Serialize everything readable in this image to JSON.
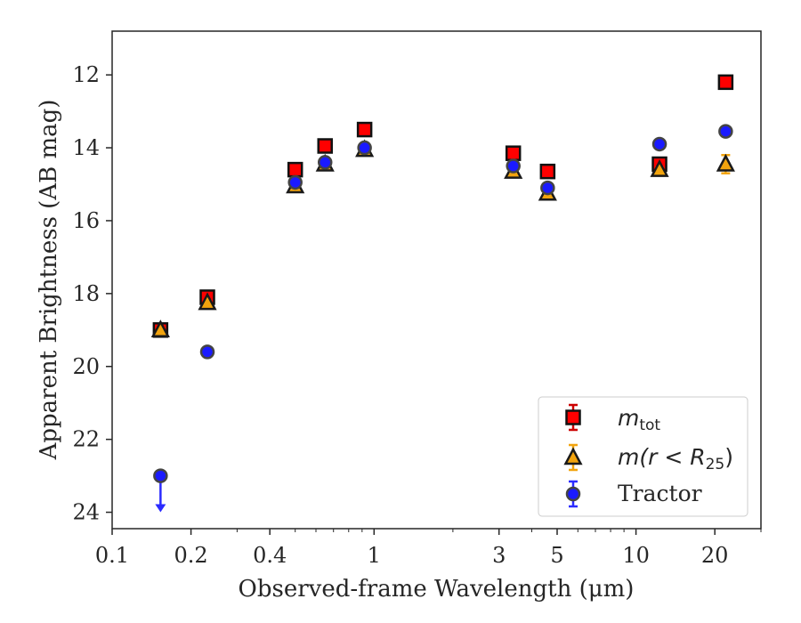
{
  "chart_data": {
    "type": "scatter",
    "xlabel": "Observed-frame Wavelength (μm)",
    "ylabel": "Apparent Brightness (AB mag)",
    "xscale": "log",
    "xlim": [
      0.1,
      30
    ],
    "ylim": [
      24.45,
      10.8
    ],
    "y_inverted": true,
    "x_major_ticks": [
      {
        "value": 0.1,
        "label": "0.1"
      },
      {
        "value": 0.2,
        "label": "0.2"
      },
      {
        "value": 0.4,
        "label": "0.4"
      },
      {
        "value": 1,
        "label": "1"
      },
      {
        "value": 3,
        "label": "3"
      },
      {
        "value": 5,
        "label": "5"
      },
      {
        "value": 10,
        "label": "10"
      },
      {
        "value": 20,
        "label": "20"
      }
    ],
    "x_minor_ticks": [
      0.3,
      0.5,
      0.6,
      0.7,
      0.8,
      0.9,
      2,
      4,
      6,
      7,
      8,
      9,
      30
    ],
    "y_ticks": [
      {
        "value": 12,
        "label": "12"
      },
      {
        "value": 14,
        "label": "14"
      },
      {
        "value": 16,
        "label": "16"
      },
      {
        "value": 18,
        "label": "18"
      },
      {
        "value": 20,
        "label": "20"
      },
      {
        "value": 22,
        "label": "22"
      },
      {
        "value": 24,
        "label": "24"
      }
    ],
    "grid": false,
    "legend_position": "lower-right",
    "legend": {
      "mtot_base": "m",
      "mtot_sub": "tot",
      "mr_prefix": "m(r < R",
      "mr_sub": "25",
      "mr_suffix": ")",
      "tractor": "Tractor"
    },
    "colors": {
      "mtot_fill": "#ff0000",
      "mtot_edge": "#111111",
      "mtot_err": "#cc0000",
      "mr_fill": "#f2a40e",
      "mr_edge": "#1a1a1a",
      "mr_err": "#f2a40e",
      "tractor_fill": "#1a1aff",
      "tractor_edge": "#444444",
      "tractor_err": "#2b2bff"
    },
    "series": [
      {
        "id": "mtot",
        "marker": "square",
        "points": [
          {
            "x": 0.153,
            "y": 19.0,
            "err": 0.05
          },
          {
            "x": 0.231,
            "y": 18.1,
            "err": 0.05
          },
          {
            "x": 0.5,
            "y": 14.6,
            "err": 0.03
          },
          {
            "x": 0.65,
            "y": 13.95,
            "err": 0.03
          },
          {
            "x": 0.92,
            "y": 13.5,
            "err": 0.03
          },
          {
            "x": 3.4,
            "y": 14.15,
            "err": 0.03
          },
          {
            "x": 4.6,
            "y": 14.65,
            "err": 0.03
          },
          {
            "x": 12.3,
            "y": 14.45,
            "err": 0.05
          },
          {
            "x": 22.0,
            "y": 12.2,
            "err": 0.05
          }
        ]
      },
      {
        "id": "mr25",
        "marker": "triangle",
        "points": [
          {
            "x": 0.153,
            "y": 19.0,
            "err": 0.05
          },
          {
            "x": 0.231,
            "y": 18.25,
            "err": 0.05
          },
          {
            "x": 0.5,
            "y": 15.05,
            "err": 0.03
          },
          {
            "x": 0.65,
            "y": 14.45,
            "err": 0.03
          },
          {
            "x": 0.92,
            "y": 14.05,
            "err": 0.03
          },
          {
            "x": 3.4,
            "y": 14.65,
            "err": 0.03
          },
          {
            "x": 4.6,
            "y": 15.25,
            "err": 0.03
          },
          {
            "x": 12.3,
            "y": 14.6,
            "err": 0.05
          },
          {
            "x": 22.0,
            "y": 14.45,
            "err": 0.25
          }
        ]
      },
      {
        "id": "tractor",
        "marker": "circle",
        "points": [
          {
            "x": 0.153,
            "y": 23.0,
            "err": 0,
            "upper_limit": true
          },
          {
            "x": 0.231,
            "y": 19.6,
            "err": 0.05
          },
          {
            "x": 0.5,
            "y": 14.95,
            "err": 0.03
          },
          {
            "x": 0.65,
            "y": 14.4,
            "err": 0.03
          },
          {
            "x": 0.92,
            "y": 14.0,
            "err": 0.03
          },
          {
            "x": 3.4,
            "y": 14.5,
            "err": 0.03
          },
          {
            "x": 4.6,
            "y": 15.1,
            "err": 0.03
          },
          {
            "x": 12.3,
            "y": 13.9,
            "err": 0.03
          },
          {
            "x": 22.0,
            "y": 13.55,
            "err": 0.03
          }
        ]
      }
    ]
  }
}
